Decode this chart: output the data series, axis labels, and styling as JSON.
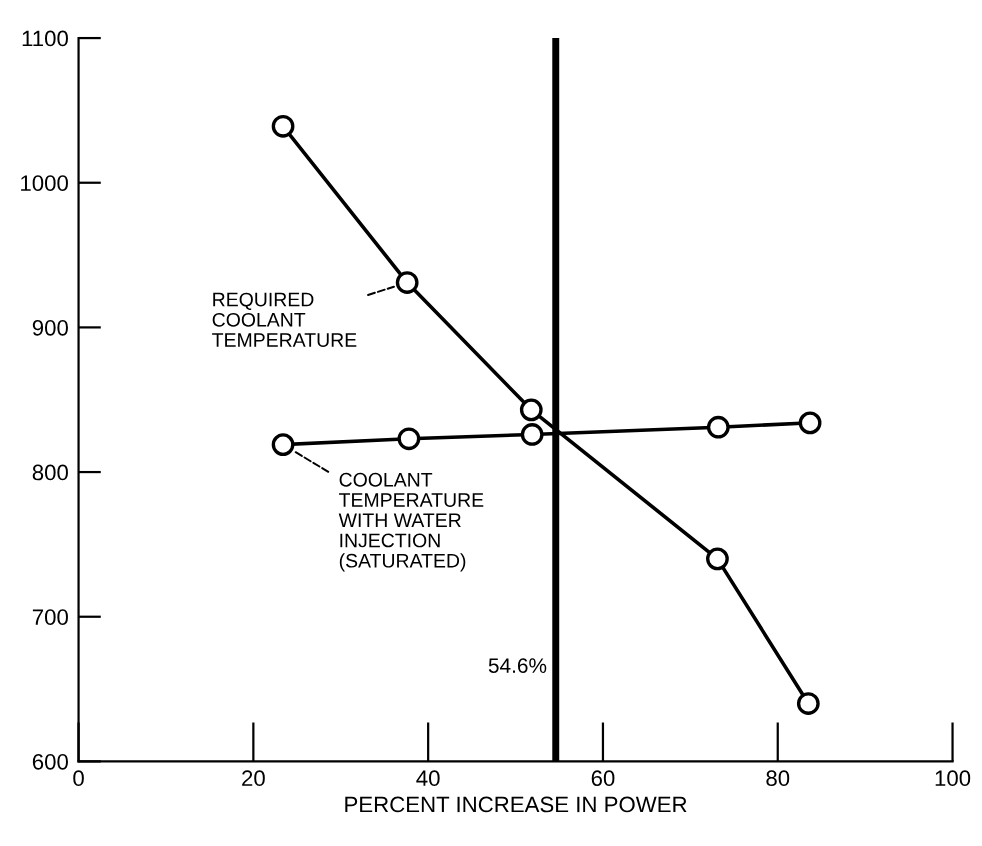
{
  "chart_data": {
    "type": "line",
    "xlabel": "PERCENT INCREASE IN POWER",
    "series": [
      {
        "name": "REQUIRED\nCOOLANT\nTEMPERATURE",
        "color": "#000000",
        "x": [
          23.4,
          37.6,
          51.8,
          73.1,
          83.5
        ],
        "values": [
          1039,
          931,
          843,
          740,
          640
        ]
      },
      {
        "name": "COOLANT\nTEMPERATURE\nWITH WATER\nINJECTION\n(SATURATED)",
        "color": "#000000",
        "x": [
          23.4,
          37.8,
          51.9,
          73.2,
          83.7
        ],
        "values": [
          819,
          823,
          826,
          831,
          834
        ]
      }
    ],
    "xlim": [
      0,
      100
    ],
    "xticks": [
      0,
      20,
      40,
      60,
      80,
      100
    ],
    "ylim": [
      600,
      1100
    ],
    "yticks": [
      600,
      700,
      800,
      900,
      1000,
      1100
    ],
    "ref_lines": [
      {
        "axis": "x",
        "value": 54.6,
        "label": "54.6%",
        "color": "#000000"
      }
    ],
    "marker": "circle",
    "line_style": "solid",
    "grid": false,
    "legend": false
  }
}
